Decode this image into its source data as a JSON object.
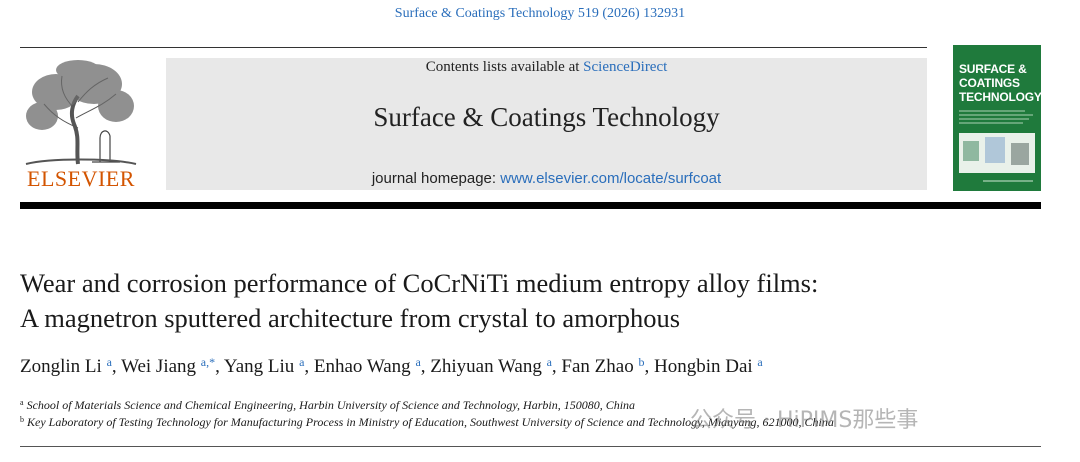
{
  "citation": "Surface & Coatings Technology 519 (2026) 132931",
  "publisher": {
    "logo_word": "ELSEVIER",
    "logo_icon": "elsevier-tree-icon"
  },
  "banner": {
    "contents_prefix": "Contents lists available at ",
    "contents_link": "ScienceDirect",
    "journal_title": "Surface & Coatings Technology",
    "homepage_prefix": "journal homepage: ",
    "homepage_link": "www.elsevier.com/locate/surfcoat"
  },
  "cover": {
    "title_line1": "SURFACE &",
    "title_line2": "COATINGS",
    "title_line3": "TECHNOLOGY"
  },
  "article": {
    "title_line1": "Wear and corrosion performance of CoCrNiTi medium entropy alloy films:",
    "title_line2": "A magnetron sputtered architecture from crystal to amorphous",
    "authors": [
      {
        "name": "Zonglin Li",
        "aff": "a"
      },
      {
        "name": "Wei Jiang",
        "aff": "a,*"
      },
      {
        "name": "Yang Liu",
        "aff": "a"
      },
      {
        "name": "Enhao Wang",
        "aff": "a"
      },
      {
        "name": "Zhiyuan Wang",
        "aff": "a"
      },
      {
        "name": "Fan Zhao",
        "aff": "b"
      },
      {
        "name": "Hongbin Dai",
        "aff": "a"
      }
    ],
    "affiliations": [
      {
        "mark": "a",
        "text": "School of Materials Science and Chemical Engineering, Harbin University of Science and Technology, Harbin, 150080, China"
      },
      {
        "mark": "b",
        "text": "Key Laboratory of Testing Technology for Manufacturing Process in Ministry of Education, Southwest University of Science and Technology, Mianyang, 621000, China"
      }
    ]
  },
  "watermark": "公众号 · HiPIMS那些事"
}
